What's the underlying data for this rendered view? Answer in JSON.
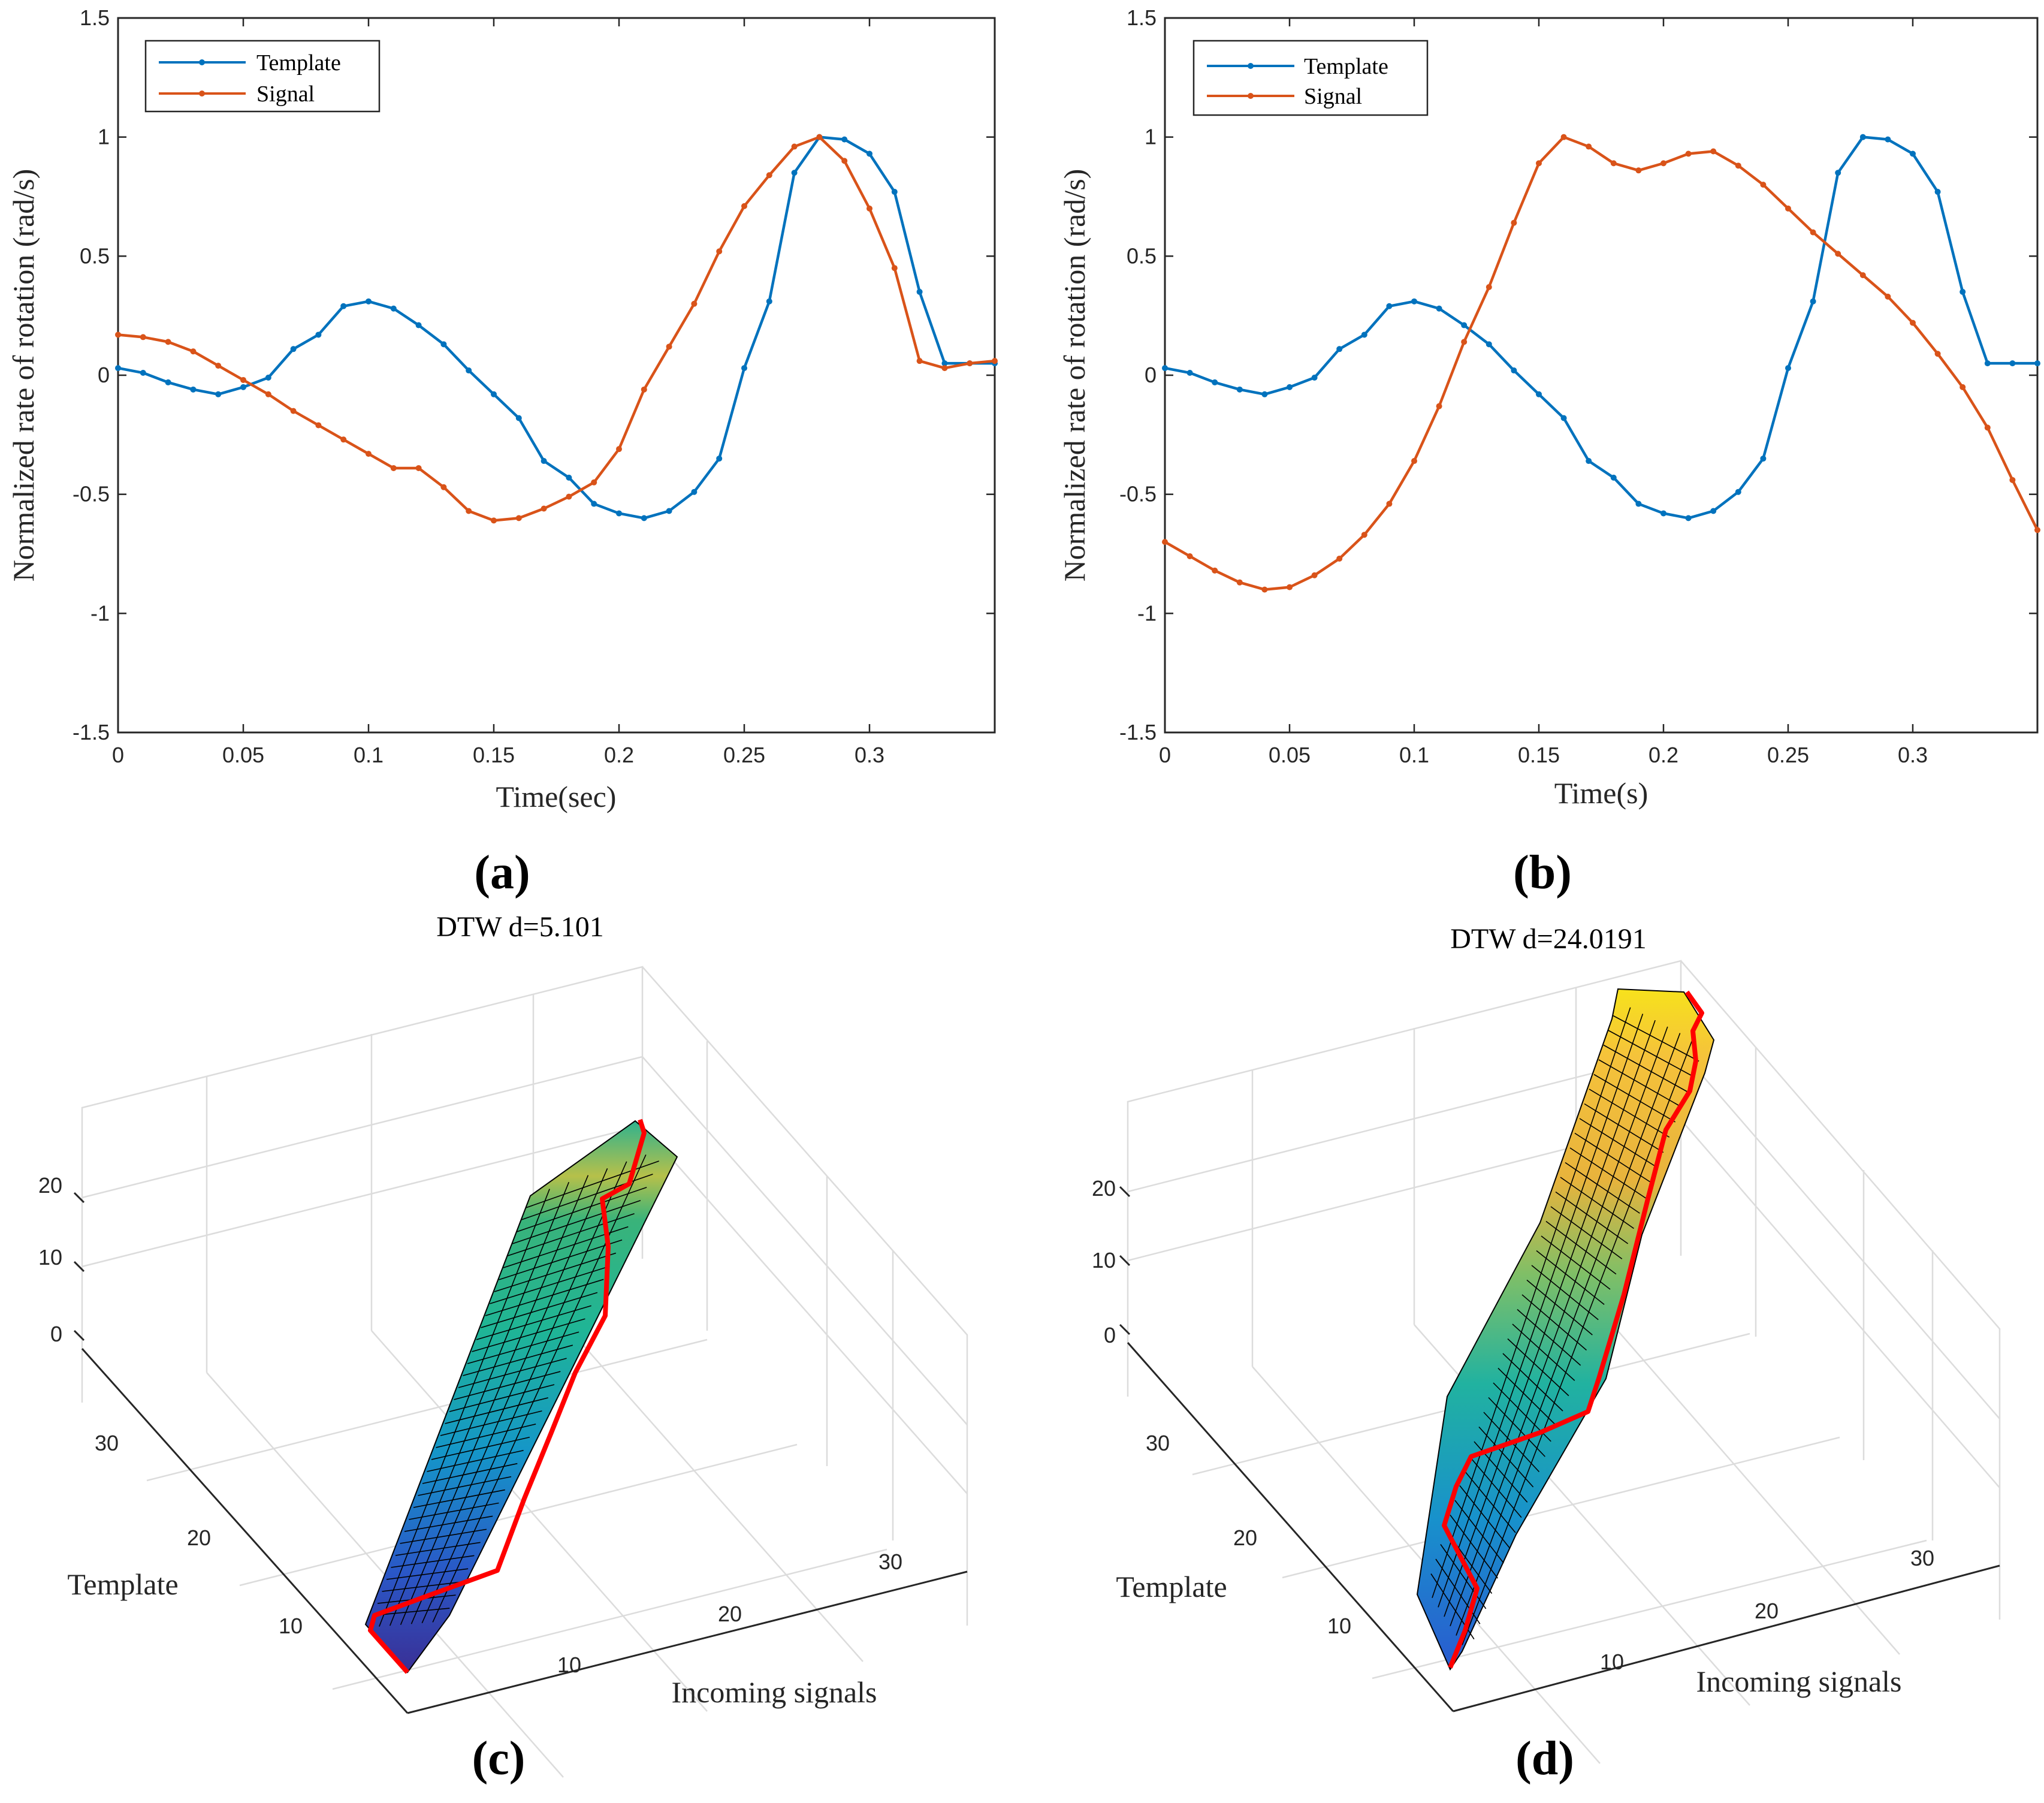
{
  "colors": {
    "template": "#0072BD",
    "signal": "#D95319",
    "path": "#ff0000",
    "axis": "#262626"
  },
  "chart_data": [
    {
      "type": "line",
      "panel_label": "(a)",
      "xlabel": "Time(sec)",
      "ylabel": "Normalized rate of rotation (rad/s)",
      "xlim": [
        0,
        0.35
      ],
      "ylim": [
        -1.5,
        1.5
      ],
      "xticks": [
        "0",
        "0.05",
        "0.1",
        "0.15",
        "0.2",
        "0.25",
        "0.3"
      ],
      "yticks": [
        "-1.5",
        "-1",
        "-0.5",
        "0",
        "0.5",
        "1",
        "1.5"
      ],
      "legend": [
        "Template",
        "Signal"
      ],
      "legend_position": "top-left",
      "x": [
        0,
        0.01,
        0.02,
        0.03,
        0.04,
        0.05,
        0.06,
        0.07,
        0.08,
        0.09,
        0.1,
        0.11,
        0.12,
        0.13,
        0.14,
        0.15,
        0.16,
        0.17,
        0.18,
        0.19,
        0.2,
        0.21,
        0.22,
        0.23,
        0.24,
        0.25,
        0.26,
        0.27,
        0.28,
        0.29,
        0.3,
        0.31,
        0.32,
        0.33,
        0.34,
        0.35
      ],
      "series": [
        {
          "name": "Template",
          "values": [
            0.03,
            0.01,
            -0.03,
            -0.06,
            -0.08,
            -0.05,
            -0.01,
            0.11,
            0.17,
            0.29,
            0.31,
            0.28,
            0.21,
            0.13,
            0.02,
            -0.08,
            -0.18,
            -0.36,
            -0.43,
            -0.54,
            -0.58,
            -0.6,
            -0.57,
            -0.49,
            -0.35,
            0.03,
            0.31,
            0.85,
            1.0,
            0.99,
            0.93,
            0.77,
            0.35,
            0.05,
            0.05,
            0.05
          ]
        },
        {
          "name": "Signal",
          "values": [
            0.17,
            0.16,
            0.14,
            0.1,
            0.04,
            -0.02,
            -0.08,
            -0.15,
            -0.21,
            -0.27,
            -0.33,
            -0.39,
            -0.39,
            -0.47,
            -0.57,
            -0.61,
            -0.6,
            -0.56,
            -0.51,
            -0.45,
            -0.31,
            -0.06,
            0.12,
            0.3,
            0.52,
            0.71,
            0.84,
            0.96,
            1.0,
            0.9,
            0.7,
            0.45,
            0.06,
            0.03,
            0.05,
            0.06
          ]
        }
      ]
    },
    {
      "type": "line",
      "panel_label": "(b)",
      "xlabel": "Time(s)",
      "ylabel": "Normalized rate of rotation (rad/s)",
      "xlim": [
        0,
        0.35
      ],
      "ylim": [
        -1.5,
        1.5
      ],
      "xticks": [
        "0",
        "0.05",
        "0.1",
        "0.15",
        "0.2",
        "0.25",
        "0.3"
      ],
      "yticks": [
        "-1.5",
        "-1",
        "-0.5",
        "0",
        "0.5",
        "1",
        "1.5"
      ],
      "legend": [
        "Template",
        "Signal"
      ],
      "legend_position": "top-left",
      "x": [
        0,
        0.01,
        0.02,
        0.03,
        0.04,
        0.05,
        0.06,
        0.07,
        0.08,
        0.09,
        0.1,
        0.11,
        0.12,
        0.13,
        0.14,
        0.15,
        0.16,
        0.17,
        0.18,
        0.19,
        0.2,
        0.21,
        0.22,
        0.23,
        0.24,
        0.25,
        0.26,
        0.27,
        0.28,
        0.29,
        0.3,
        0.31,
        0.32,
        0.33,
        0.34,
        0.35
      ],
      "series": [
        {
          "name": "Template",
          "values": [
            0.03,
            0.01,
            -0.03,
            -0.06,
            -0.08,
            -0.05,
            -0.01,
            0.11,
            0.17,
            0.29,
            0.31,
            0.28,
            0.21,
            0.13,
            0.02,
            -0.08,
            -0.18,
            -0.36,
            -0.43,
            -0.54,
            -0.58,
            -0.6,
            -0.57,
            -0.49,
            -0.35,
            0.03,
            0.31,
            0.85,
            1.0,
            0.99,
            0.93,
            0.77,
            0.35,
            0.05,
            0.05,
            0.05
          ]
        },
        {
          "name": "Signal",
          "values": [
            -0.7,
            -0.76,
            -0.82,
            -0.87,
            -0.9,
            -0.89,
            -0.84,
            -0.77,
            -0.67,
            -0.54,
            -0.36,
            -0.13,
            0.14,
            0.37,
            0.64,
            0.89,
            1.0,
            0.96,
            0.89,
            0.86,
            0.89,
            0.93,
            0.94,
            0.88,
            0.8,
            0.7,
            0.6,
            0.51,
            0.42,
            0.33,
            0.22,
            0.09,
            -0.05,
            -0.22,
            -0.44,
            -0.65
          ]
        }
      ]
    },
    {
      "type": "surface3d",
      "panel_label": "(c)",
      "title": "DTW d=5.101",
      "xlabel": "Incoming signals",
      "ylabel": "Template",
      "zticks": [
        "0",
        "10",
        "20"
      ],
      "yticks": [
        "10",
        "20",
        "30"
      ],
      "xticks": [
        "10",
        "20",
        "30"
      ],
      "zlim": [
        0,
        25
      ],
      "warping_path": [
        [
          1,
          1
        ],
        [
          1,
          3
        ],
        [
          4,
          5
        ],
        [
          7,
          6
        ],
        [
          10,
          7
        ],
        [
          11,
          8
        ],
        [
          13,
          11
        ],
        [
          15,
          14
        ],
        [
          17,
          17
        ],
        [
          19,
          20
        ],
        [
          21,
          23
        ],
        [
          24,
          24
        ],
        [
          26,
          25
        ],
        [
          29,
          26
        ],
        [
          31,
          27
        ],
        [
          33,
          28
        ],
        [
          35,
          30
        ],
        [
          36,
          33
        ],
        [
          36,
          36
        ]
      ],
      "surface_peak": 24
    },
    {
      "type": "surface3d",
      "panel_label": "(d)",
      "title": "DTW d=24.0191",
      "xlabel": "Incoming signals",
      "ylabel": "Template",
      "zticks": [
        "0",
        "10",
        "20"
      ],
      "yticks": [
        "10",
        "20",
        "30"
      ],
      "xticks": [
        "10",
        "20",
        "30"
      ],
      "zlim": [
        0,
        25
      ],
      "warping_path": [
        [
          1,
          1
        ],
        [
          3,
          1
        ],
        [
          5,
          2
        ],
        [
          7,
          2
        ],
        [
          9,
          1
        ],
        [
          11,
          1
        ],
        [
          13,
          1
        ],
        [
          15,
          6
        ],
        [
          16,
          11
        ],
        [
          17,
          14
        ],
        [
          19,
          17
        ],
        [
          21,
          20
        ],
        [
          23,
          22
        ],
        [
          25,
          24
        ],
        [
          27,
          26
        ],
        [
          29,
          28
        ],
        [
          31,
          30
        ],
        [
          33,
          32
        ],
        [
          35,
          34
        ],
        [
          36,
          36
        ]
      ],
      "surface_peak": 30
    }
  ]
}
